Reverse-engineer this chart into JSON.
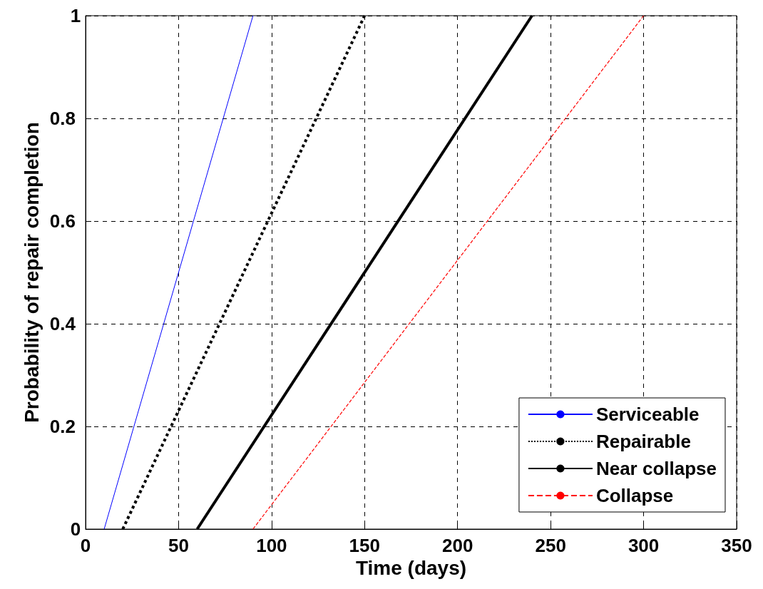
{
  "chart_data": {
    "type": "line",
    "xlabel": "Time (days)",
    "ylabel": "Probability of repair completion",
    "xlim": [
      0,
      350
    ],
    "xticks": [
      0,
      50,
      100,
      150,
      200,
      250,
      300,
      350
    ],
    "ylim": [
      0,
      1
    ],
    "yticks": [
      0,
      0.2,
      0.4,
      0.6,
      0.8,
      1
    ],
    "grid": true,
    "legend": "bottom right",
    "marker": "none",
    "series": [
      {
        "name": "Serviceable",
        "color": "#0000ff",
        "line_style": "solid",
        "x": [
          10,
          90
        ],
        "values": [
          0,
          1
        ]
      },
      {
        "name": "Repairable",
        "color": "#000000",
        "line_style": "dotted",
        "x": [
          20,
          150
        ],
        "values": [
          0,
          1
        ]
      },
      {
        "name": "Near collapse",
        "color": "#000000",
        "line_style": "solid",
        "x": [
          60,
          240
        ],
        "values": [
          0,
          1
        ]
      },
      {
        "name": "Collapse",
        "color": "#ff0000",
        "line_style": "dashed",
        "x": [
          90,
          300
        ],
        "values": [
          0,
          1
        ]
      }
    ]
  }
}
